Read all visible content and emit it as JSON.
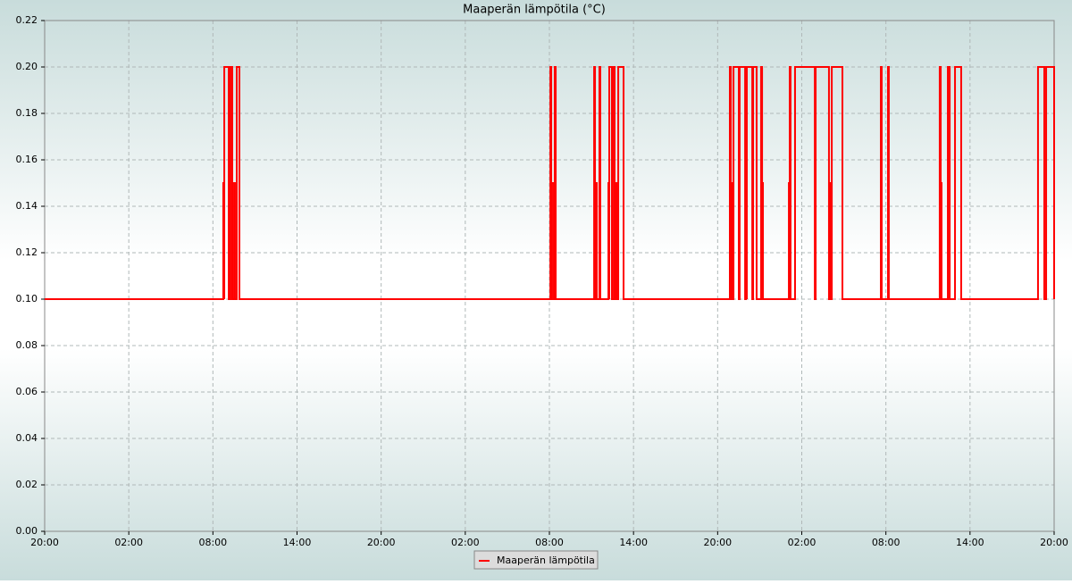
{
  "chart_data": {
    "type": "line",
    "title": "Maaperän lämpötila (°C)",
    "xlim": [
      0,
      72
    ],
    "xticks": [
      {
        "value": 0,
        "label": "20:00"
      },
      {
        "value": 6,
        "label": "02:00"
      },
      {
        "value": 12,
        "label": "08:00"
      },
      {
        "value": 18,
        "label": "14:00"
      },
      {
        "value": 24,
        "label": "20:00"
      },
      {
        "value": 30,
        "label": "02:00"
      },
      {
        "value": 36,
        "label": "08:00"
      },
      {
        "value": 42,
        "label": "14:00"
      },
      {
        "value": 48,
        "label": "20:00"
      },
      {
        "value": 54,
        "label": "02:00"
      },
      {
        "value": 60,
        "label": "08:00"
      },
      {
        "value": 66,
        "label": "14:00"
      },
      {
        "value": 72,
        "label": "20:00"
      }
    ],
    "ylim": [
      0,
      0.22
    ],
    "yticks": [
      {
        "value": 0,
        "label": "0.00"
      },
      {
        "value": 0.02,
        "label": "0.02"
      },
      {
        "value": 0.04,
        "label": "0.04"
      },
      {
        "value": 0.06,
        "label": "0.06"
      },
      {
        "value": 0.08,
        "label": "0.08"
      },
      {
        "value": 0.1,
        "label": "0.10"
      },
      {
        "value": 0.12,
        "label": "0.12"
      },
      {
        "value": 0.14,
        "label": "0.14"
      },
      {
        "value": 0.16,
        "label": "0.16"
      },
      {
        "value": 0.18,
        "label": "0.18"
      },
      {
        "value": 0.2,
        "label": "0.20"
      },
      {
        "value": 0.22,
        "label": "0.22"
      }
    ],
    "grid": true,
    "legend": "bottom",
    "x": [
      0,
      12.74,
      12.74,
      12.81,
      12.81,
      12.81,
      12.81,
      13.13,
      13.13,
      13.25,
      13.25,
      13.38,
      13.38,
      13.51,
      13.51,
      13.57,
      13.57,
      13.7,
      13.7,
      13.89,
      13.89,
      36.07,
      36.07,
      36.13,
      36.13,
      36.19,
      36.19,
      36.32,
      36.32,
      36.38,
      36.38,
      36.45,
      36.45,
      39.19,
      39.19,
      39.25,
      39.25,
      39.31,
      39.31,
      39.38,
      39.38,
      39.57,
      39.57,
      39.63,
      39.63,
      40.21,
      40.21,
      40.27,
      40.27,
      40.27,
      40.27,
      40.46,
      40.46,
      40.59,
      40.59,
      40.65,
      40.65,
      40.72,
      40.72,
      40.84,
      40.84,
      40.91,
      40.91,
      41.29,
      41.29,
      48.87,
      48.87,
      48.94,
      48.94,
      49.0,
      49.0,
      49.06,
      49.06,
      49.13,
      49.13,
      49.51,
      49.51,
      49.57,
      49.57,
      49.96,
      49.96,
      50.02,
      50.02,
      50.08,
      50.08,
      50.08,
      50.08,
      50.47,
      50.47,
      50.53,
      50.53,
      50.78,
      50.78,
      51.1,
      51.1,
      51.17,
      51.17,
      51.17,
      51.17,
      51.23,
      51.23,
      53.08,
      53.08,
      53.14,
      53.14,
      53.14,
      53.14,
      53.2,
      53.2,
      53.52,
      53.52,
      54.93,
      54.93,
      54.99,
      54.99,
      55.94,
      55.94,
      56.01,
      56.01,
      56.07,
      56.07,
      56.14,
      56.14,
      56.9,
      56.9,
      59.64,
      59.64,
      59.7,
      59.7,
      60.15,
      60.15,
      60.21,
      60.21,
      63.84,
      63.84,
      63.91,
      63.91,
      63.91,
      63.91,
      63.97,
      63.97,
      64.42,
      64.42,
      64.55,
      64.55,
      64.93,
      64.93,
      65.37,
      65.37,
      70.85,
      70.85,
      71.3,
      71.3,
      71.43,
      71.43,
      72,
      72
    ],
    "series": [
      {
        "name": "Maaperän lämpötila",
        "color": "#ff0000",
        "values": [
          0.1,
          0.1,
          0.15,
          0.15,
          0.1,
          0.1,
          0.2,
          0.2,
          0.1,
          0.1,
          0.2,
          0.2,
          0.1,
          0.1,
          0.15,
          0.15,
          0.1,
          0.1,
          0.2,
          0.2,
          0.1,
          0.1,
          0.2,
          0.2,
          0.1,
          0.1,
          0.15,
          0.15,
          0.1,
          0.1,
          0.2,
          0.2,
          0.1,
          0.1,
          0.2,
          0.2,
          0.1,
          0.1,
          0.15,
          0.15,
          0.1,
          0.1,
          0.2,
          0.2,
          0.1,
          0.1,
          0.15,
          0.15,
          0.1,
          0.1,
          0.2,
          0.2,
          0.1,
          0.1,
          0.2,
          0.2,
          0.1,
          0.1,
          0.15,
          0.15,
          0.1,
          0.1,
          0.2,
          0.2,
          0.1,
          0.1,
          0.2,
          0.2,
          0.1,
          0.1,
          0.15,
          0.15,
          0.1,
          0.1,
          0.2,
          0.2,
          0.1,
          0.1,
          0.2,
          0.2,
          0.1,
          0.1,
          0.15,
          0.15,
          0.1,
          0.1,
          0.2,
          0.2,
          0.1,
          0.1,
          0.2,
          0.2,
          0.1,
          0.1,
          0.2,
          0.2,
          0.1,
          0.1,
          0.15,
          0.15,
          0.1,
          0.1,
          0.15,
          0.15,
          0.1,
          0.1,
          0.2,
          0.2,
          0.1,
          0.1,
          0.2,
          0.2,
          0.1,
          0.1,
          0.2,
          0.2,
          0.1,
          0.1,
          0.15,
          0.15,
          0.1,
          0.1,
          0.2,
          0.2,
          0.1,
          0.1,
          0.2,
          0.2,
          0.1,
          0.1,
          0.2,
          0.2,
          0.1,
          0.1,
          0.2,
          0.2,
          0.1,
          0.1,
          0.15,
          0.15,
          0.1,
          0.1,
          0.2,
          0.2,
          0.1,
          0.1,
          0.2,
          0.2,
          0.1,
          0.1,
          0.2,
          0.2,
          0.1,
          0.1,
          0.2,
          0.2,
          0.1
        ]
      }
    ]
  }
}
